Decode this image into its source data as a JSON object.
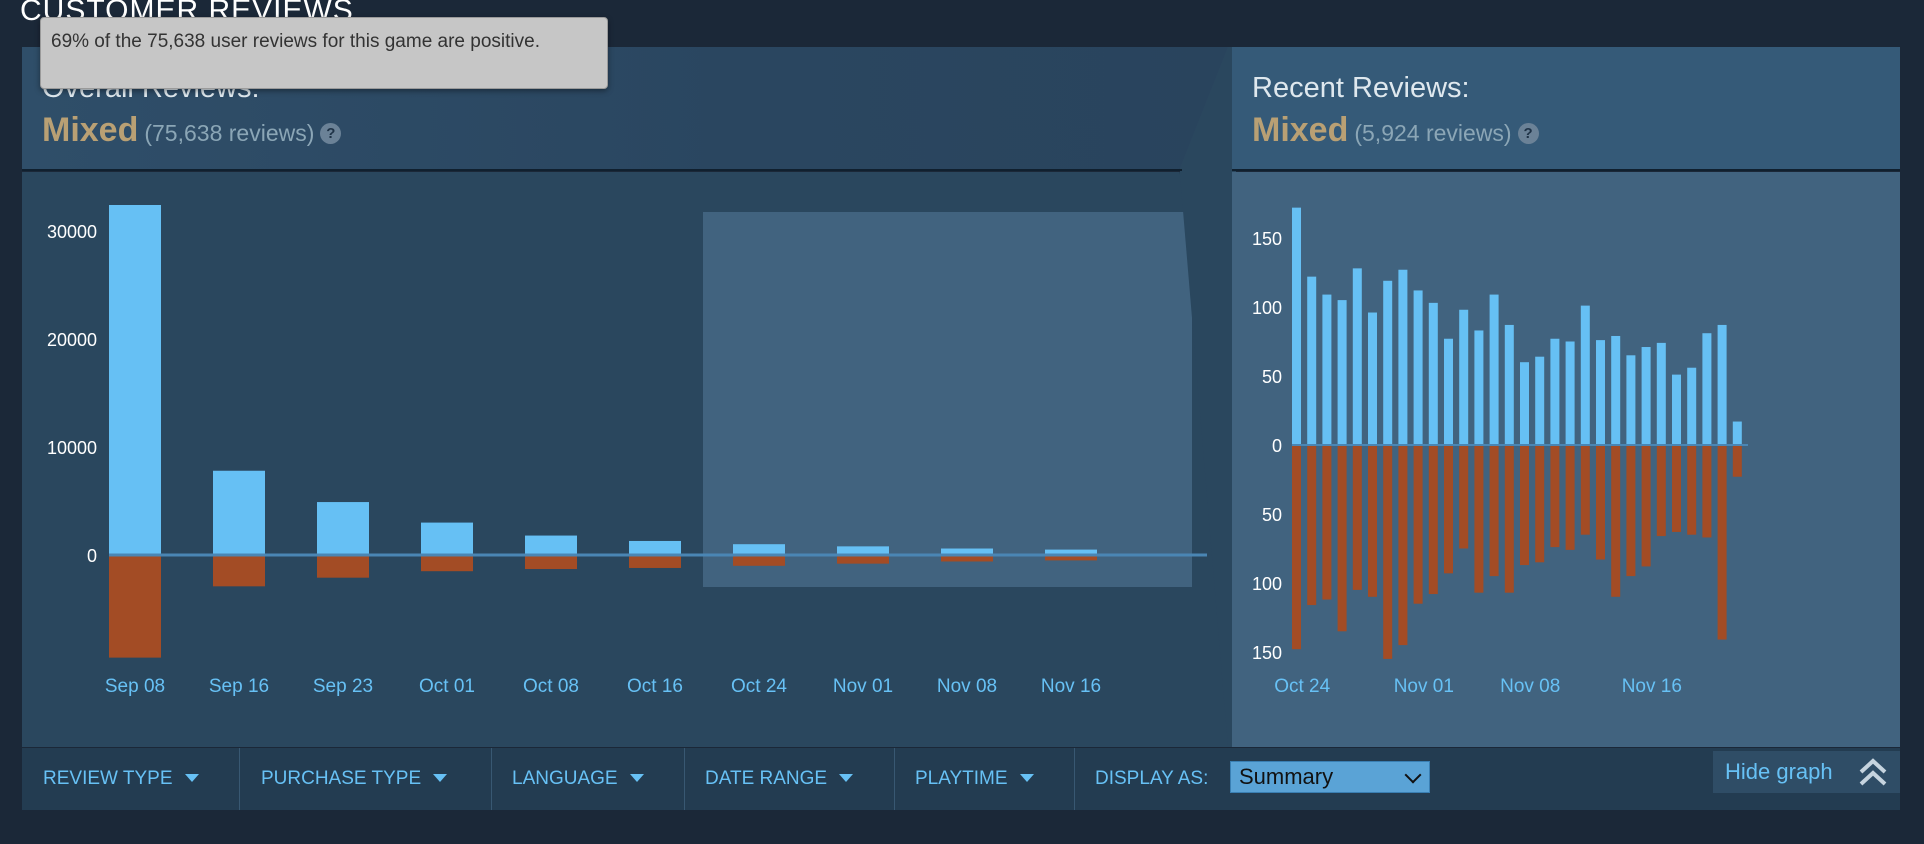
{
  "section_title": "CUSTOMER REVIEWS",
  "tooltip": "69% of the 75,638 user reviews for this game are positive.",
  "overall": {
    "title": "Overall Reviews:",
    "summary": "Mixed",
    "count": "(75,638 reviews)",
    "help": "?"
  },
  "recent": {
    "title": "Recent Reviews:",
    "summary": "Mixed",
    "count": "(5,924 reviews)",
    "help": "?"
  },
  "colors": {
    "positive": "#66c0f4",
    "negative": "#a34c25",
    "summary_mixed": "#b9a074",
    "link": "#67c1f5"
  },
  "filters": {
    "review_type": "REVIEW TYPE",
    "purchase_type": "PURCHASE TYPE",
    "language": "LANGUAGE",
    "date_range": "DATE RANGE",
    "playtime": "PLAYTIME",
    "display_as_label": "DISPLAY AS:",
    "display_as_value": "Summary"
  },
  "hide_graph": "Hide graph",
  "chart_data": [
    {
      "type": "bar",
      "x_labels": [
        "Sep 08",
        "Sep 16",
        "Sep 23",
        "Oct 01",
        "Oct 08",
        "Oct 16",
        "Oct 24",
        "Nov 01",
        "Nov 08",
        "Nov 16"
      ],
      "y_ticks": [
        "30000",
        "20000",
        "10000",
        "0"
      ],
      "ylim": [
        -10000,
        32500
      ],
      "positive": [
        32400,
        7800,
        4900,
        3000,
        1800,
        1300,
        1000,
        800,
        600,
        500
      ],
      "negative": [
        9500,
        2900,
        2100,
        1500,
        1300,
        1200,
        1000,
        800,
        600,
        500
      ],
      "highlighted_range": [
        "Oct 24",
        "Nov 16"
      ]
    },
    {
      "type": "bar",
      "x_labels": [
        "Oct 24",
        "Nov 01",
        "Nov 08",
        "Nov 16"
      ],
      "y_ticks": [
        "150",
        "100",
        "50",
        "0",
        "50",
        "100",
        "150"
      ],
      "ylim": [
        -150,
        175
      ],
      "positive": [
        172,
        122,
        109,
        105,
        128,
        96,
        119,
        127,
        112,
        103,
        77,
        98,
        83,
        109,
        87,
        60,
        64,
        77,
        75,
        101,
        76,
        79,
        65,
        71,
        74,
        51,
        56,
        81,
        87,
        17
      ],
      "negative": [
        148,
        116,
        112,
        135,
        105,
        110,
        155,
        145,
        115,
        108,
        93,
        75,
        107,
        95,
        107,
        87,
        85,
        74,
        76,
        65,
        83,
        110,
        95,
        88,
        66,
        63,
        65,
        67,
        141,
        23
      ]
    }
  ]
}
